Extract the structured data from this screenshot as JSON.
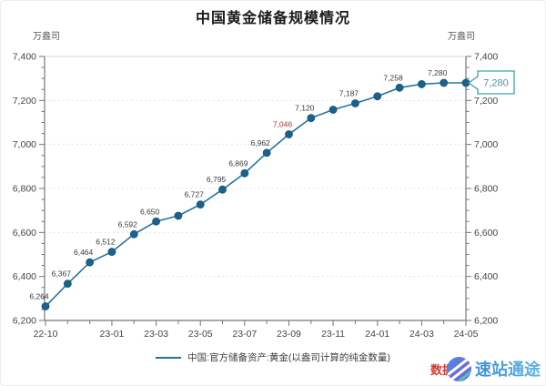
{
  "page": {
    "title": "中国黄金储备规模情况"
  },
  "axis_units": {
    "left": "万盎司",
    "right": "万盎司"
  },
  "chart_data": {
    "type": "line",
    "title": "中国黄金储备规模情况",
    "ylabel": "万盎司",
    "x": [
      "22-10",
      "22-11",
      "22-12",
      "23-01",
      "23-02",
      "23-03",
      "23-04",
      "23-05",
      "23-06",
      "23-07",
      "23-08",
      "23-09",
      "23-10",
      "23-11",
      "23-12",
      "24-01",
      "24-02",
      "24-03",
      "24-04",
      "24-05"
    ],
    "series": [
      {
        "name": "中国:官方储备资产:黄金(以盎司计算的纯金数量)",
        "values": [
          6264,
          6367,
          6464,
          6512,
          6592,
          6650,
          6676,
          6727,
          6795,
          6869,
          6962,
          7046,
          7120,
          7158,
          7187,
          7219,
          7258,
          7274,
          7280,
          7280
        ]
      }
    ],
    "point_label_indices": [
      0,
      1,
      2,
      3,
      4,
      5,
      7,
      8,
      9,
      10,
      11,
      12,
      14,
      16,
      18
    ],
    "highlight_label_index": 11,
    "x_tick_indices": [
      0,
      3,
      5,
      7,
      9,
      11,
      13,
      15,
      17,
      19
    ],
    "x_tick_labels": [
      "22-10",
      "23-01",
      "23-03",
      "23-05",
      "23-07",
      "23-09",
      "23-11",
      "24-01",
      "24-03",
      "24-05"
    ],
    "ylim": [
      6200,
      7400
    ],
    "y_major_step": 200,
    "y_minor_step": 50,
    "grid": "horizontal-dashed",
    "legend_position": "bottom",
    "last_point_callout": "7,280",
    "colors": {
      "line": "#26759c",
      "dot": "#1a628c",
      "point_label": "#3a3a3a",
      "highlight_label": "#a3392c",
      "axis": "#777777",
      "tick_label": "#444444",
      "grid": "#e3e3e3",
      "callout_border": "#43a0a0",
      "callout_text": "#558e9b"
    }
  },
  "legend": {
    "label": "中国:官方储备资产:黄金(以盎司计算的纯金数量)"
  },
  "watermark": {
    "prefix": "数据",
    "brand": "速站通途"
  }
}
